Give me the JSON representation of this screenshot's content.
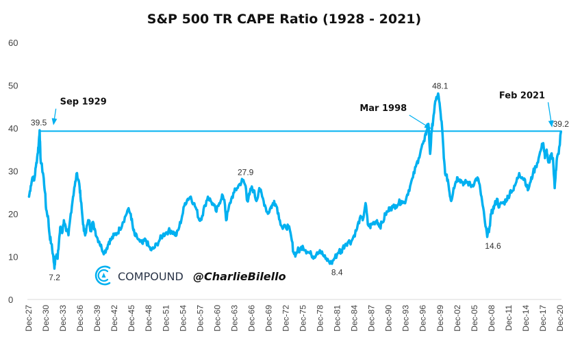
{
  "chart_data": {
    "type": "line",
    "title": "S&P 500 TR CAPE Ratio (1928 - 2021)",
    "xlabel": "",
    "ylabel": "",
    "ylim": [
      0,
      60
    ],
    "yticks": [
      0,
      10,
      20,
      30,
      40,
      50,
      60
    ],
    "xlim": [
      1927.95,
      2020.95
    ],
    "xticks": [
      "Dec-27",
      "Dec-30",
      "Dec-33",
      "Dec-36",
      "Dec-39",
      "Dec-42",
      "Dec-45",
      "Dec-48",
      "Dec-51",
      "Dec-54",
      "Dec-57",
      "Dec-60",
      "Dec-63",
      "Dec-66",
      "Dec-69",
      "Dec-72",
      "Dec-75",
      "Dec-78",
      "Dec-81",
      "Dec-84",
      "Dec-87",
      "Dec-90",
      "Dec-93",
      "Dec-96",
      "Dec-99",
      "Dec-02",
      "Dec-05",
      "Dec-08",
      "Dec-11",
      "Dec-14",
      "Dec-17",
      "Dec-20"
    ],
    "grid": false,
    "line_color": "#00b0f0",
    "series": [
      {
        "name": "S&P 500 TR CAPE Ratio",
        "x": [
          1928.0,
          1928.3,
          1928.6,
          1928.9,
          1929.2,
          1929.5,
          1929.7,
          1929.85,
          1930.0,
          1930.3,
          1930.5,
          1930.8,
          1931.0,
          1931.3,
          1931.6,
          1931.9,
          1932.2,
          1932.45,
          1932.6,
          1932.8,
          1933.0,
          1933.3,
          1933.5,
          1933.8,
          1934.1,
          1934.5,
          1934.9,
          1935.3,
          1935.7,
          1936.0,
          1936.4,
          1936.8,
          1937.0,
          1937.3,
          1937.6,
          1937.9,
          1938.2,
          1938.5,
          1938.8,
          1939.1,
          1939.5,
          1939.9,
          1940.3,
          1940.7,
          1941.2,
          1941.6,
          1942.0,
          1942.4,
          1942.9,
          1943.4,
          1943.9,
          1944.4,
          1944.9,
          1945.3,
          1945.8,
          1946.2,
          1946.5,
          1946.9,
          1947.4,
          1947.9,
          1948.4,
          1948.9,
          1949.4,
          1949.9,
          1950.4,
          1950.9,
          1951.4,
          1951.9,
          1952.4,
          1952.9,
          1953.4,
          1953.8,
          1954.3,
          1954.8,
          1955.3,
          1955.8,
          1956.3,
          1956.8,
          1957.3,
          1957.8,
          1958.3,
          1958.8,
          1959.3,
          1959.8,
          1960.3,
          1960.8,
          1961.3,
          1961.8,
          1962.3,
          1962.5,
          1962.9,
          1963.4,
          1963.9,
          1964.4,
          1964.9,
          1965.4,
          1965.9,
          1966.2,
          1966.6,
          1966.9,
          1967.3,
          1967.8,
          1968.3,
          1968.8,
          1969.3,
          1969.8,
          1970.3,
          1970.6,
          1970.9,
          1971.4,
          1971.9,
          1972.4,
          1972.9,
          1973.4,
          1973.9,
          1974.3,
          1974.7,
          1975.0,
          1975.4,
          1975.9,
          1976.4,
          1976.9,
          1977.4,
          1977.9,
          1978.4,
          1978.9,
          1979.4,
          1979.9,
          1980.4,
          1980.9,
          1981.4,
          1981.9,
          1982.3,
          1982.6,
          1982.9,
          1983.4,
          1983.9,
          1984.4,
          1984.9,
          1985.4,
          1985.9,
          1986.4,
          1986.9,
          1987.3,
          1987.7,
          1987.9,
          1988.4,
          1988.9,
          1989.4,
          1989.9,
          1990.4,
          1990.8,
          1991.2,
          1991.7,
          1992.2,
          1992.7,
          1993.2,
          1993.7,
          1994.2,
          1994.7,
          1995.2,
          1995.7,
          1996.2,
          1996.7,
          1997.2,
          1997.6,
          1997.9,
          1998.2,
          1998.5,
          1998.8,
          1999.2,
          1999.6,
          1999.95,
          2000.3,
          2000.6,
          2000.9,
          2001.3,
          2001.6,
          2001.9,
          2002.3,
          2002.7,
          2003.0,
          2003.4,
          2003.8,
          2004.2,
          2004.6,
          2005.0,
          2005.5,
          2006.0,
          2006.5,
          2007.0,
          2007.4,
          2007.8,
          2008.2,
          2008.6,
          2008.9,
          2009.2,
          2009.5,
          2009.9,
          2010.3,
          2010.7,
          2011.1,
          2011.6,
          2011.9,
          2012.3,
          2012.8,
          2013.3,
          2013.8,
          2014.3,
          2014.8,
          2015.3,
          2015.8,
          2016.2,
          2016.7,
          2017.2,
          2017.7,
          2018.0,
          2018.3,
          2018.6,
          2018.9,
          2019.1,
          2019.4,
          2019.7,
          2020.0,
          2020.2,
          2020.4,
          2020.7,
          2021.1
        ],
        "values": [
          24.0,
          26.5,
          28.5,
          27.8,
          31.0,
          34.0,
          36.5,
          39.5,
          33.0,
          30.5,
          29.0,
          25.0,
          21.0,
          19.5,
          15.0,
          13.0,
          10.5,
          7.2,
          10.0,
          10.5,
          9.5,
          14.5,
          17.0,
          15.5,
          18.5,
          16.0,
          15.0,
          20.0,
          24.0,
          26.5,
          29.5,
          27.0,
          24.0,
          20.0,
          16.0,
          15.5,
          17.5,
          18.5,
          16.0,
          18.0,
          16.5,
          14.5,
          13.5,
          12.0,
          11.0,
          12.0,
          13.5,
          14.0,
          15.0,
          15.5,
          16.5,
          18.0,
          19.5,
          21.0,
          20.0,
          16.5,
          15.0,
          14.5,
          13.5,
          13.0,
          14.0,
          12.5,
          11.5,
          12.0,
          13.0,
          14.0,
          15.0,
          15.5,
          16.0,
          16.0,
          15.5,
          15.0,
          17.0,
          19.5,
          22.5,
          23.5,
          24.0,
          22.5,
          21.0,
          18.5,
          19.5,
          22.0,
          24.0,
          23.0,
          22.0,
          20.5,
          22.5,
          24.5,
          22.0,
          18.5,
          21.0,
          23.5,
          25.0,
          26.0,
          27.0,
          27.9,
          26.5,
          23.0,
          24.5,
          26.0,
          25.5,
          23.0,
          26.0,
          24.0,
          22.0,
          20.0,
          21.5,
          22.0,
          23.0,
          21.5,
          18.5,
          16.5,
          17.0,
          17.0,
          14.5,
          11.0,
          10.5,
          11.5,
          11.5,
          12.5,
          11.5,
          11.0,
          10.5,
          10.0,
          11.0,
          11.5,
          10.5,
          9.5,
          9.0,
          8.4,
          9.5,
          10.5,
          11.5,
          11.0,
          12.0,
          13.0,
          13.5,
          13.5,
          15.0,
          16.5,
          19.0,
          18.5,
          22.5,
          17.5,
          17.0,
          17.5,
          18.0,
          18.5,
          17.0,
          18.0,
          20.0,
          20.5,
          21.5,
          21.5,
          22.0,
          22.5,
          23.0,
          22.5,
          24.5,
          26.5,
          28.5,
          31.0,
          33.0,
          35.5,
          37.0,
          39.5,
          41.0,
          34.0,
          39.5,
          43.0,
          46.5,
          48.1,
          44.5,
          40.0,
          33.0,
          29.0,
          28.0,
          25.0,
          23.0,
          26.0,
          27.5,
          28.5,
          28.0,
          27.5,
          27.0,
          27.5,
          27.0,
          26.5,
          27.5,
          28.5,
          25.5,
          22.0,
          18.0,
          14.6,
          17.0,
          20.0,
          21.0,
          22.0,
          23.5,
          21.5,
          22.5,
          22.5,
          23.5,
          24.0,
          25.5,
          25.5,
          27.5,
          29.5,
          28.5,
          28.0,
          25.5,
          27.5,
          29.5,
          31.0,
          33.0,
          35.5,
          36.5,
          33.0,
          35.0,
          32.0,
          32.0,
          34.0,
          33.0,
          26.0,
          30.0,
          33.0,
          34.0,
          39.2
        ],
        "data_labels": [
          {
            "x": 1929.7,
            "value": 39.5,
            "label": "39.5",
            "position": "above"
          },
          {
            "x": 1932.45,
            "value": 7.2,
            "label": "7.2",
            "position": "below"
          },
          {
            "x": 1965.9,
            "value": 27.9,
            "label": "27.9",
            "position": "above"
          },
          {
            "x": 1981.9,
            "value": 8.4,
            "label": "8.4",
            "position": "below"
          },
          {
            "x": 1999.95,
            "value": 48.1,
            "label": "48.1",
            "position": "above"
          },
          {
            "x": 2009.2,
            "value": 14.6,
            "label": "14.6",
            "position": "below"
          },
          {
            "x": 2021.1,
            "value": 39.2,
            "label": "39.2",
            "position": "above"
          }
        ]
      }
    ],
    "reference_line": {
      "value": 39.3,
      "x_start": 1929.7,
      "x_end": 2021.1,
      "color": "#00b0f0"
    },
    "annotations": [
      {
        "text": "Sep 1929",
        "text_x": 1937.5,
        "text_y": 45.5,
        "arrow_to_x": 1932.3,
        "arrow_to_y": 41.0
      },
      {
        "text": "Mar 1998",
        "text_x": 1990.0,
        "text_y": 44.0,
        "arrow_to_x": 1998.2,
        "arrow_to_y": 40.0
      },
      {
        "text": "Feb 2021",
        "text_x": 2014.3,
        "text_y": 47.0,
        "arrow_to_x": 2019.5,
        "arrow_to_y": 40.5
      }
    ],
    "watermark": {
      "brand": "COMPOUND",
      "handle": "@CharlieBilello",
      "logo_color": "#00b0f0"
    }
  }
}
